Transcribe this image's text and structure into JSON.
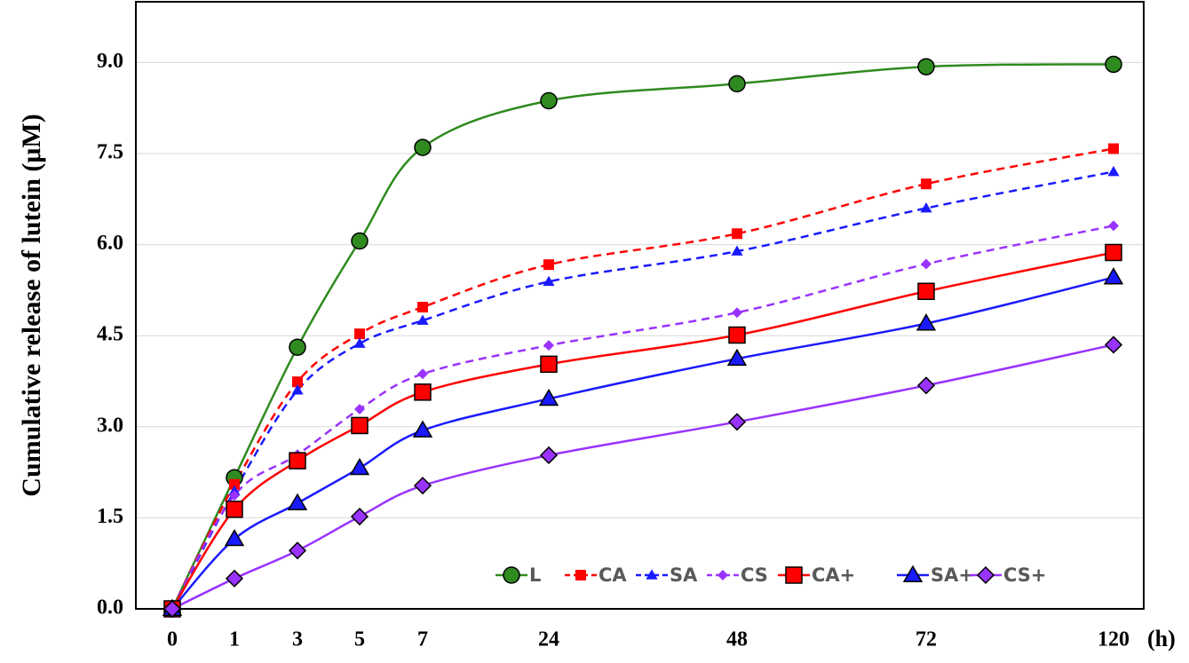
{
  "chart_data": {
    "type": "line",
    "y_label": "Cumulative release of  lutein (μM)",
    "x_label": "(h)",
    "categories": [
      "0",
      "1",
      "3",
      "5",
      "7",
      "24",
      "48",
      "72",
      "120"
    ],
    "ylim": [
      0,
      10
    ],
    "yticks": [
      {
        "value": 0,
        "label": "0.0"
      },
      1.5,
      {
        "value": 3,
        "label": "3.0"
      },
      4.5,
      {
        "value": 6,
        "label": "6.0"
      },
      7.5,
      {
        "value": 9,
        "label": "9.0"
      }
    ],
    "grid": true,
    "legend": "lower right",
    "series": [
      {
        "name": "L",
        "color": "#2f8a1f",
        "dashed": false,
        "marker": "circle",
        "outlined": true,
        "values": [
          0,
          2.16,
          4.31,
          6.06,
          7.6,
          8.37,
          8.65,
          8.93,
          8.97
        ]
      },
      {
        "name": "CA",
        "color": "#ff0000",
        "dashed": true,
        "marker": "square",
        "outlined": false,
        "values": [
          0,
          2.05,
          3.74,
          4.53,
          4.97,
          5.67,
          6.18,
          7.0,
          7.58
        ]
      },
      {
        "name": "SA",
        "color": "#1a1aff",
        "dashed": true,
        "marker": "triangle",
        "outlined": false,
        "values": [
          0,
          1.94,
          3.6,
          4.37,
          4.75,
          5.39,
          5.89,
          6.6,
          7.2
        ]
      },
      {
        "name": "CS",
        "color": "#9933ff",
        "dashed": true,
        "marker": "diamond",
        "outlined": false,
        "values": [
          0,
          1.87,
          2.54,
          3.29,
          3.87,
          4.34,
          4.88,
          5.68,
          6.31
        ]
      },
      {
        "name": "CA+",
        "color": "#ff0000",
        "dashed": false,
        "marker": "square",
        "outlined": true,
        "values": [
          0,
          1.64,
          2.44,
          3.02,
          3.57,
          4.03,
          4.51,
          5.23,
          5.87
        ]
      },
      {
        "name": "SA+",
        "color": "#1a1aff",
        "dashed": false,
        "marker": "triangle",
        "outlined": true,
        "values": [
          0,
          1.15,
          1.74,
          2.32,
          2.94,
          3.46,
          4.12,
          4.7,
          5.46
        ]
      },
      {
        "name": "CS+",
        "color": "#9933ff",
        "dashed": false,
        "marker": "diamond",
        "outlined": true,
        "values": [
          0,
          0.5,
          0.96,
          1.52,
          2.03,
          2.53,
          3.08,
          3.68,
          4.35
        ]
      }
    ]
  }
}
